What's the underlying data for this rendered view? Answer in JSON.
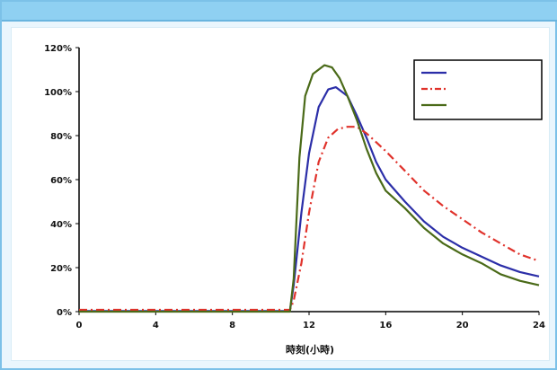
{
  "chart_data": {
    "type": "line",
    "title": "",
    "subtitle": "",
    "annotation": "",
    "xlabel": "時刻(小時)",
    "ylabel": "",
    "xlim": [
      0,
      24
    ],
    "ylim": [
      0,
      120
    ],
    "x_ticks": [
      0,
      4,
      8,
      12,
      16,
      20,
      24
    ],
    "y_ticks": [
      0,
      20,
      40,
      60,
      80,
      100,
      120
    ],
    "y_tick_labels": [
      "0%",
      "20%",
      "40%",
      "60%",
      "80%",
      "100%",
      "120%"
    ],
    "grid": false,
    "legend_position": "top-right",
    "series": [
      {
        "name": "",
        "color": "#2b2ea8",
        "style": "solid",
        "points": [
          [
            0,
            0.3
          ],
          [
            11,
            0.3
          ],
          [
            11.2,
            12
          ],
          [
            11.6,
            45
          ],
          [
            12,
            72
          ],
          [
            12.5,
            93
          ],
          [
            13,
            101
          ],
          [
            13.4,
            102
          ],
          [
            14,
            98
          ],
          [
            14.5,
            89
          ],
          [
            15,
            79
          ],
          [
            15.5,
            68
          ],
          [
            16,
            60
          ],
          [
            17,
            50
          ],
          [
            18,
            41
          ],
          [
            19,
            34
          ],
          [
            20,
            29
          ],
          [
            21,
            25
          ],
          [
            22,
            21
          ],
          [
            23,
            18
          ],
          [
            24,
            16
          ]
        ]
      },
      {
        "name": "",
        "color": "#e0322b",
        "style": "dashdot",
        "points": [
          [
            0,
            0.8
          ],
          [
            11,
            0.8
          ],
          [
            11.2,
            5
          ],
          [
            11.6,
            22
          ],
          [
            12,
            45
          ],
          [
            12.5,
            68
          ],
          [
            13,
            79
          ],
          [
            13.5,
            83
          ],
          [
            14,
            84
          ],
          [
            14.5,
            84
          ],
          [
            15,
            81
          ],
          [
            15.5,
            77
          ],
          [
            16,
            73
          ],
          [
            17,
            64
          ],
          [
            18,
            55
          ],
          [
            19,
            48
          ],
          [
            20,
            42
          ],
          [
            21,
            36
          ],
          [
            22,
            31
          ],
          [
            23,
            26
          ],
          [
            24,
            23
          ]
        ]
      },
      {
        "name": "",
        "color": "#4a6a18",
        "style": "solid",
        "points": [
          [
            0,
            0
          ],
          [
            11,
            0
          ],
          [
            11.2,
            15
          ],
          [
            11.5,
            70
          ],
          [
            11.8,
            98
          ],
          [
            12.2,
            108
          ],
          [
            12.8,
            112
          ],
          [
            13.2,
            111
          ],
          [
            13.6,
            106
          ],
          [
            14,
            98
          ],
          [
            14.5,
            87
          ],
          [
            15,
            74
          ],
          [
            15.5,
            63
          ],
          [
            16,
            55
          ],
          [
            17,
            47
          ],
          [
            18,
            38
          ],
          [
            19,
            31
          ],
          [
            20,
            26
          ],
          [
            21,
            22
          ],
          [
            22,
            17
          ],
          [
            23,
            14
          ],
          [
            24,
            12
          ]
        ]
      }
    ]
  }
}
